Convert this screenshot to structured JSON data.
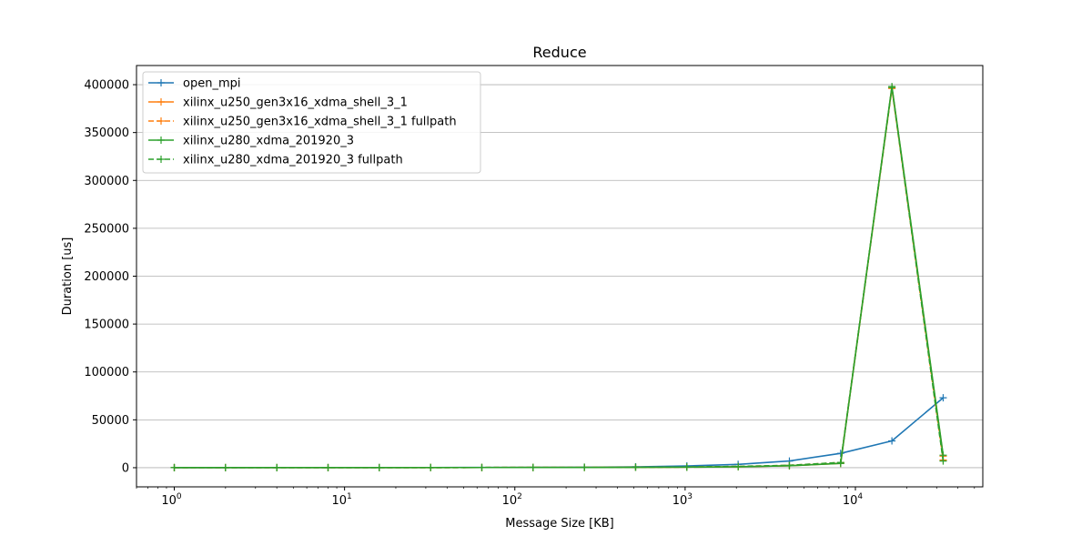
{
  "chart_data": {
    "type": "line",
    "title": "Reduce",
    "xlabel": "Message Size [KB]",
    "ylabel": "Duration [us]",
    "x_scale": "log",
    "xlim": [
      0.6,
      56000
    ],
    "ylim": [
      -20000,
      420000
    ],
    "grid": "y-major",
    "legend_position": "top-left",
    "yticks": [
      0,
      50000,
      100000,
      150000,
      200000,
      250000,
      300000,
      350000,
      400000
    ],
    "ytick_labels": [
      "0",
      "50000",
      "100000",
      "150000",
      "200000",
      "250000",
      "300000",
      "350000",
      "400000"
    ],
    "xticks": [
      1,
      10,
      100,
      1000,
      10000
    ],
    "xtick_labels": [
      {
        "base": "10",
        "exp": "0"
      },
      {
        "base": "10",
        "exp": "1"
      },
      {
        "base": "10",
        "exp": "2"
      },
      {
        "base": "10",
        "exp": "3"
      },
      {
        "base": "10",
        "exp": "4"
      }
    ],
    "x": [
      1,
      2,
      4,
      8,
      16,
      32,
      64,
      128,
      256,
      512,
      1024,
      2048,
      4096,
      8192,
      16384,
      32768
    ],
    "series": [
      {
        "name": "open_mpi",
        "color": "#1f77b4",
        "dash": "solid",
        "values": [
          50,
          60,
          80,
          100,
          150,
          200,
          250,
          350,
          500,
          900,
          1800,
          3500,
          7000,
          15000,
          28000,
          73000
        ]
      },
      {
        "name": "xilinx_u250_gen3x16_xdma_shell_3_1",
        "color": "#ff7f0e",
        "dash": "solid",
        "values": [
          100,
          100,
          100,
          100,
          100,
          150,
          200,
          250,
          300,
          400,
          600,
          1000,
          2000,
          4500,
          397000,
          12000
        ]
      },
      {
        "name": "xilinx_u250_gen3x16_xdma_shell_3_1 fullpath",
        "color": "#ff7f0e",
        "dash": "dashed",
        "values": [
          100,
          100,
          100,
          100,
          100,
          150,
          200,
          250,
          300,
          400,
          700,
          1300,
          2500,
          5500,
          396000,
          8000
        ]
      },
      {
        "name": "xilinx_u280_xdma_201920_3",
        "color": "#2ca02c",
        "dash": "solid",
        "values": [
          100,
          100,
          100,
          100,
          100,
          150,
          200,
          250,
          300,
          400,
          600,
          1000,
          2000,
          4500,
          398000,
          13000
        ]
      },
      {
        "name": "xilinx_u280_xdma_201920_3 fullpath",
        "color": "#2ca02c",
        "dash": "dashed",
        "values": [
          100,
          100,
          100,
          100,
          100,
          150,
          200,
          250,
          300,
          400,
          700,
          1300,
          2500,
          5500,
          397000,
          7000
        ]
      }
    ]
  }
}
